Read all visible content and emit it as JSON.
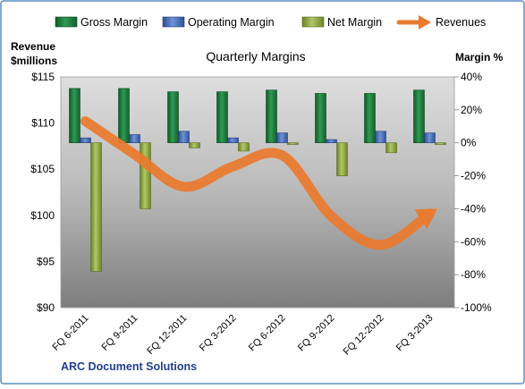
{
  "colors": {
    "gross_margin": "#1E7A3C",
    "operating_margin": "#4569B0",
    "net_margin": "#8CA43C",
    "revenues": "#E97A2E",
    "panel_border": "#5B8EC3"
  },
  "legend": [
    {
      "key": "gross",
      "label": "Gross Margin",
      "symbol": "bar"
    },
    {
      "key": "operating",
      "label": "Operating Margin",
      "symbol": "bar"
    },
    {
      "key": "net",
      "label": "Net Margin",
      "symbol": "bar"
    },
    {
      "key": "revenues",
      "label": "Revenues",
      "symbol": "arrow"
    }
  ],
  "chart_data": {
    "type": "bar",
    "title": "Quarterly Margins",
    "left_axis_title_line1": "Revenue",
    "left_axis_title_line2": "$millions",
    "right_axis_title": "Margin %",
    "footer": "ARC Document Solutions",
    "categories": [
      "FQ 6-2011",
      "FQ 9-2011",
      "FQ 12-2011",
      "FQ 3-2012",
      "FQ 6-2012",
      "FQ 9-2012",
      "FQ 12-2012",
      "FQ 3-2013"
    ],
    "series": [
      {
        "name": "Gross Margin",
        "axis": "right",
        "type": "bar",
        "values": [
          33,
          33,
          31,
          31,
          32,
          30,
          30,
          32
        ]
      },
      {
        "name": "Operating Margin",
        "axis": "right",
        "type": "bar",
        "values": [
          3,
          5,
          7,
          3,
          6,
          2,
          7,
          6
        ]
      },
      {
        "name": "Net Margin",
        "axis": "right",
        "type": "bar",
        "values": [
          -78,
          -40,
          -3,
          -5,
          -1,
          -20,
          -6,
          -1
        ]
      },
      {
        "name": "Revenues",
        "axis": "left",
        "type": "line",
        "values": [
          110.2,
          106.6,
          103.1,
          105.3,
          106.5,
          99.9,
          96.8,
          100.2
        ]
      }
    ],
    "left_axis": {
      "min": 90,
      "max": 115,
      "step": 5,
      "tick_labels": [
        "$90",
        "$95",
        "$100",
        "$105",
        "$110",
        "$115"
      ]
    },
    "right_axis": {
      "min": -100,
      "max": 40,
      "step": 20,
      "tick_labels": [
        "-100%",
        "-80%",
        "-60%",
        "-40%",
        "-20%",
        "0%",
        "20%",
        "40%"
      ]
    },
    "grid": false,
    "legend_position": "top"
  }
}
